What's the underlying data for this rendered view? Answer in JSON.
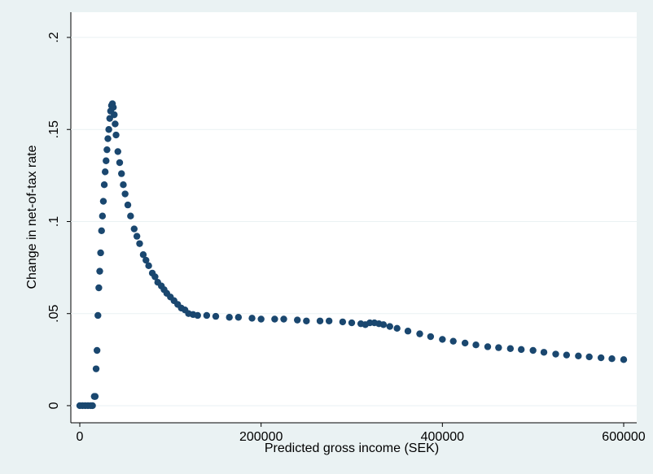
{
  "chart_data": {
    "type": "scatter",
    "x_label": "Predicted gross income (SEK)",
    "y_label": "Change in net-of-tax rate",
    "color": "#1a476f",
    "grid": true,
    "xlim": [
      -9880,
      614370
    ],
    "ylim": [
      -0.0093,
      0.2137
    ],
    "xticks": [
      0,
      200000,
      400000,
      600000
    ],
    "yticks": [
      0,
      {
        "value": 0.05,
        "label": ".05"
      },
      {
        "value": 0.1,
        "label": ".1"
      },
      {
        "value": 0.15,
        "label": ".15"
      },
      {
        "value": 0.2,
        "label": ".2"
      }
    ],
    "x": [
      0,
      3000,
      6000,
      9000,
      12000,
      14000,
      16000,
      17000,
      18000,
      19000,
      20000,
      21000,
      22000,
      23000,
      24000,
      25000,
      26000,
      27000,
      28000,
      29000,
      30000,
      31000,
      32000,
      33000,
      34000,
      35000,
      36000,
      37000,
      38000,
      39000,
      40000,
      42000,
      44000,
      46000,
      48000,
      50000,
      53000,
      56000,
      60000,
      63000,
      66000,
      70000,
      73000,
      76000,
      80000,
      83000,
      86000,
      90000,
      93000,
      96000,
      100000,
      104000,
      108000,
      112000,
      116000,
      120000,
      125000,
      130000,
      140000,
      150000,
      165000,
      175000,
      190000,
      200000,
      215000,
      225000,
      240000,
      250000,
      265000,
      275000,
      290000,
      300000,
      310000,
      315000,
      320000,
      325000,
      330000,
      335000,
      342000,
      350000,
      362000,
      375000,
      387000,
      400000,
      412000,
      425000,
      437000,
      450000,
      462000,
      475000,
      487000,
      500000,
      512000,
      525000,
      537000,
      550000,
      562000,
      575000,
      587000,
      600000
    ],
    "y": [
      0,
      0,
      0,
      0,
      0,
      0,
      0.005,
      0.005,
      0.02,
      0.03,
      0.049,
      0.064,
      0.073,
      0.083,
      0.095,
      0.103,
      0.111,
      0.12,
      0.127,
      0.133,
      0.139,
      0.145,
      0.15,
      0.156,
      0.16,
      0.163,
      0.164,
      0.162,
      0.158,
      0.153,
      0.147,
      0.138,
      0.132,
      0.126,
      0.12,
      0.115,
      0.109,
      0.103,
      0.096,
      0.092,
      0.088,
      0.082,
      0.079,
      0.076,
      0.072,
      0.07,
      0.067,
      0.065,
      0.063,
      0.061,
      0.059,
      0.057,
      0.055,
      0.053,
      0.052,
      0.05,
      0.0495,
      0.049,
      0.049,
      0.0485,
      0.048,
      0.048,
      0.0475,
      0.047,
      0.047,
      0.047,
      0.0465,
      0.046,
      0.046,
      0.046,
      0.0455,
      0.045,
      0.0445,
      0.044,
      0.045,
      0.045,
      0.0445,
      0.044,
      0.043,
      0.042,
      0.0405,
      0.039,
      0.0375,
      0.036,
      0.035,
      0.034,
      0.033,
      0.032,
      0.0315,
      0.031,
      0.0305,
      0.03,
      0.029,
      0.028,
      0.0275,
      0.027,
      0.0265,
      0.026,
      0.0255,
      0.025
    ]
  }
}
